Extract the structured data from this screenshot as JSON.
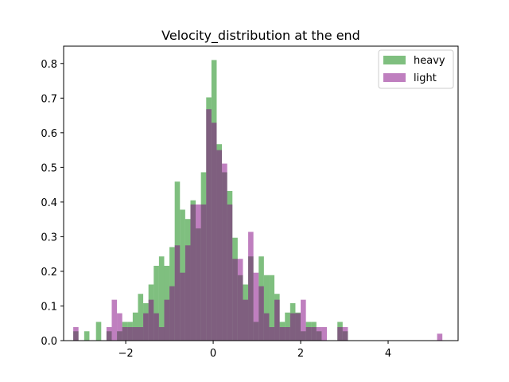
{
  "chart_data": {
    "type": "bar",
    "title": "Velocity_distribution at the end",
    "xlabel": "",
    "ylabel": "",
    "xlim": [
      -3.42,
      5.6
    ],
    "ylim": [
      0,
      0.85
    ],
    "xticks": [
      -2,
      0,
      2,
      4
    ],
    "yticks": [
      0.0,
      0.1,
      0.2,
      0.3,
      0.4,
      0.5,
      0.6,
      0.7,
      0.8
    ],
    "xtick_labels": [
      "−2",
      "0",
      "2",
      "4"
    ],
    "ytick_labels": [
      "0.0",
      "0.1",
      "0.2",
      "0.3",
      "0.4",
      "0.5",
      "0.6",
      "0.7",
      "0.8"
    ],
    "grid": false,
    "legend_position": "top-right",
    "series": [
      {
        "name": "heavy",
        "color": "#008000",
        "opacity": 0.5,
        "bin_width": 0.12,
        "bins": [
          [
            -3.2,
            0.027
          ],
          [
            -2.95,
            0.027
          ],
          [
            -2.68,
            0.054
          ],
          [
            -2.44,
            0.027
          ],
          [
            -2.2,
            0.027
          ],
          [
            -2.08,
            0.054
          ],
          [
            -1.96,
            0.054
          ],
          [
            -1.84,
            0.081
          ],
          [
            -1.72,
            0.135
          ],
          [
            -1.6,
            0.108
          ],
          [
            -1.48,
            0.162
          ],
          [
            -1.36,
            0.216
          ],
          [
            -1.24,
            0.243
          ],
          [
            -1.12,
            0.216
          ],
          [
            -1.0,
            0.27
          ],
          [
            -0.88,
            0.459
          ],
          [
            -0.76,
            0.378
          ],
          [
            -0.64,
            0.351
          ],
          [
            -0.52,
            0.405
          ],
          [
            -0.4,
            0.324
          ],
          [
            -0.28,
            0.486
          ],
          [
            -0.16,
            0.702
          ],
          [
            -0.04,
            0.81
          ],
          [
            0.08,
            0.567
          ],
          [
            0.2,
            0.486
          ],
          [
            0.32,
            0.432
          ],
          [
            0.44,
            0.297
          ],
          [
            0.56,
            0.189
          ],
          [
            0.68,
            0.162
          ],
          [
            0.8,
            0.243
          ],
          [
            0.92,
            0.054
          ],
          [
            1.04,
            0.243
          ],
          [
            1.16,
            0.189
          ],
          [
            1.28,
            0.189
          ],
          [
            1.4,
            0.135
          ],
          [
            1.52,
            0.054
          ],
          [
            1.64,
            0.081
          ],
          [
            1.76,
            0.108
          ],
          [
            1.88,
            0.081
          ],
          [
            2.0,
            0.027
          ],
          [
            2.12,
            0.054
          ],
          [
            2.24,
            0.054
          ],
          [
            2.36,
            0.027
          ],
          [
            2.84,
            0.054
          ],
          [
            2.96,
            0.027
          ]
        ]
      },
      {
        "name": "light",
        "color": "#800080",
        "opacity": 0.5,
        "bin_width": 0.12,
        "bins": [
          [
            -3.2,
            0.039
          ],
          [
            -2.44,
            0.039
          ],
          [
            -2.32,
            0.118
          ],
          [
            -2.2,
            0.079
          ],
          [
            -2.08,
            0.039
          ],
          [
            -1.96,
            0.039
          ],
          [
            -1.84,
            0.039
          ],
          [
            -1.72,
            0.039
          ],
          [
            -1.6,
            0.079
          ],
          [
            -1.48,
            0.118
          ],
          [
            -1.36,
            0.079
          ],
          [
            -1.24,
            0.039
          ],
          [
            -1.12,
            0.118
          ],
          [
            -1.0,
            0.157
          ],
          [
            -0.88,
            0.275
          ],
          [
            -0.76,
            0.196
          ],
          [
            -0.64,
            0.275
          ],
          [
            -0.52,
            0.393
          ],
          [
            -0.4,
            0.393
          ],
          [
            -0.28,
            0.393
          ],
          [
            -0.16,
            0.668
          ],
          [
            -0.04,
            0.629
          ],
          [
            0.08,
            0.55
          ],
          [
            0.2,
            0.511
          ],
          [
            0.32,
            0.393
          ],
          [
            0.44,
            0.236
          ],
          [
            0.56,
            0.236
          ],
          [
            0.68,
            0.118
          ],
          [
            0.8,
            0.314
          ],
          [
            0.92,
            0.196
          ],
          [
            1.04,
            0.157
          ],
          [
            1.16,
            0.079
          ],
          [
            1.28,
            0.039
          ],
          [
            1.4,
            0.118
          ],
          [
            1.52,
            0.039
          ],
          [
            1.64,
            0.039
          ],
          [
            1.76,
            0.079
          ],
          [
            1.88,
            0.079
          ],
          [
            2.0,
            0.118
          ],
          [
            2.12,
            0.039
          ],
          [
            2.24,
            0.039
          ],
          [
            2.36,
            0.039
          ],
          [
            2.48,
            0.039
          ],
          [
            2.84,
            0.039
          ],
          [
            2.96,
            0.039
          ],
          [
            5.12,
            0.02
          ]
        ]
      }
    ]
  }
}
